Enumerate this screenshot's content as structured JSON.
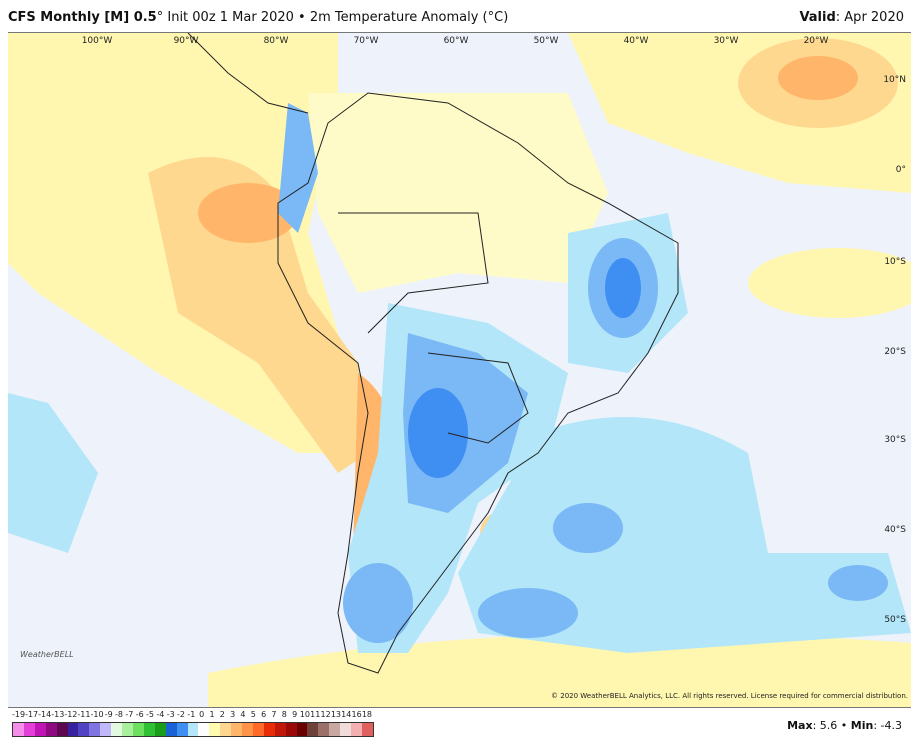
{
  "header": {
    "model": "CFS Monthly [M] 0.5",
    "model_suffix": "°",
    "init": " Init 00z 1 Mar 2020 • 2m Temperature Anomaly (°C)",
    "valid_label": "Valid",
    "valid_value": ": Apr 2020"
  },
  "map": {
    "lon_labels": [
      "100°W",
      "90°W",
      "80°W",
      "70°W",
      "60°W",
      "50°W",
      "40°W",
      "30°W",
      "20°W"
    ],
    "lat_labels": [
      "10°N",
      "0°",
      "10°S",
      "20°S",
      "30°S",
      "40°S",
      "50°S"
    ],
    "copyright": "© 2020 WeatherBELL Analytics, LLC. All rights reserved. License required for commercial distribution.",
    "logo": "WeatherBELL"
  },
  "colorbar": {
    "labels": [
      "-19",
      "-17",
      "-14",
      "-13",
      "-12",
      "-11",
      "-10",
      "-9",
      "-8",
      "-7",
      "-6",
      "-5",
      "-4",
      "-3",
      "-2",
      "-1",
      "0",
      "1",
      "2",
      "3",
      "4",
      "5",
      "6",
      "7",
      "8",
      "9",
      "10",
      "11",
      "12",
      "13",
      "14",
      "16",
      "18"
    ],
    "colors": [
      "#f48ee9",
      "#e43fd9",
      "#c015b5",
      "#8e0a80",
      "#5e0850",
      "#3722a0",
      "#5242c4",
      "#8274e0",
      "#c0b8f8",
      "#e4fae0",
      "#a8f09c",
      "#6ee060",
      "#30c034",
      "#1a9e1a",
      "#1a62d6",
      "#3f8ff2",
      "#b2e6f8",
      "#ffffff",
      "#fffcb0",
      "#ffd690",
      "#ffb66a",
      "#ff9448",
      "#ff6a28",
      "#e82c08",
      "#c01808",
      "#9a0808",
      "#6a0000",
      "#6e4038",
      "#9a7068",
      "#c8a8a0",
      "#f0dcd8",
      "#f4b0b0",
      "#e06060"
    ]
  },
  "stats": {
    "max_label": "Max",
    "max_value": ": 5.6 • ",
    "min_label": "Min",
    "min_value": ": -4.3"
  }
}
